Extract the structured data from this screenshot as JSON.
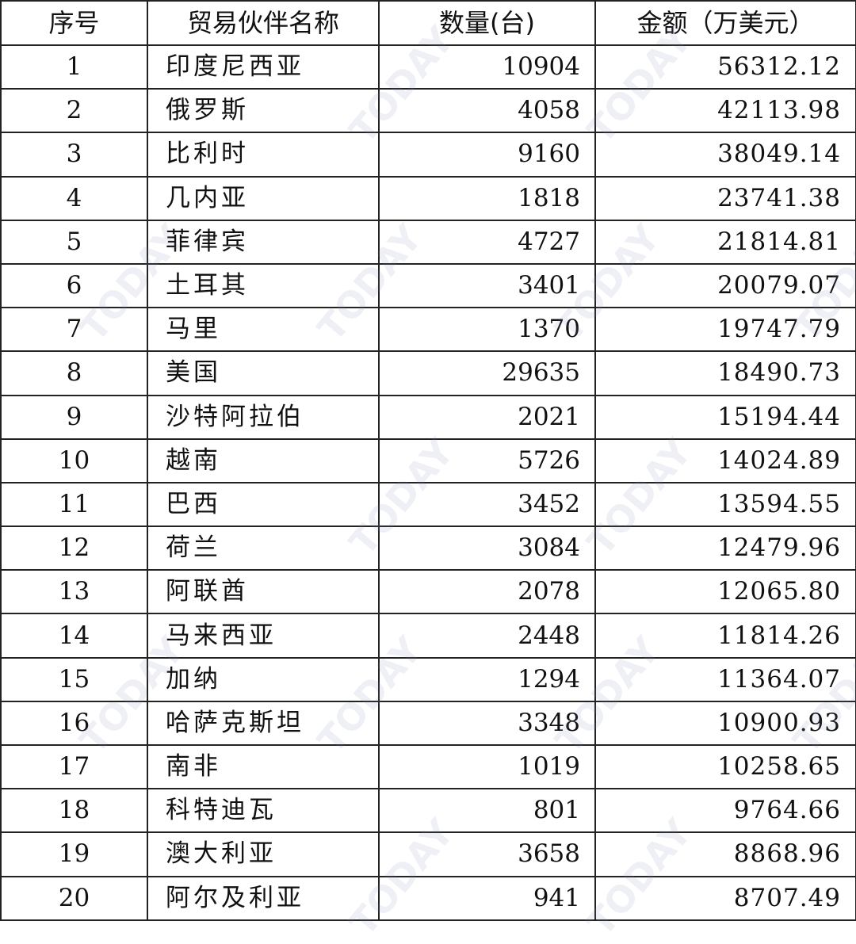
{
  "table": {
    "headers": [
      "序号",
      "贸易伙伴名称",
      "数量(台)",
      "金额（万美元）"
    ],
    "rows": [
      [
        "1",
        "印度尼西亚",
        "10904",
        "56312.12"
      ],
      [
        "2",
        "俄罗斯",
        "4058",
        "42113.98"
      ],
      [
        "3",
        "比利时",
        "9160",
        "38049.14"
      ],
      [
        "4",
        "几内亚",
        "1818",
        "23741.38"
      ],
      [
        "5",
        "菲律宾",
        "4727",
        "21814.81"
      ],
      [
        "6",
        "土耳其",
        "3401",
        "20079.07"
      ],
      [
        "7",
        "马里",
        "1370",
        "19747.79"
      ],
      [
        "8",
        "美国",
        "29635",
        "18490.73"
      ],
      [
        "9",
        "沙特阿拉伯",
        "2021",
        "15194.44"
      ],
      [
        "10",
        "越南",
        "5726",
        "14024.89"
      ],
      [
        "11",
        "巴西",
        "3452",
        "13594.55"
      ],
      [
        "12",
        "荷兰",
        "3084",
        "12479.96"
      ],
      [
        "13",
        "阿联酋",
        "2078",
        "12065.80"
      ],
      [
        "14",
        "马来西亚",
        "2448",
        "11814.26"
      ],
      [
        "15",
        "加纳",
        "1294",
        "11364.07"
      ],
      [
        "16",
        "哈萨克斯坦",
        "3348",
        "10900.93"
      ],
      [
        "17",
        "南非",
        "1019",
        "10258.65"
      ],
      [
        "18",
        "科特迪瓦",
        "801",
        "9764.66"
      ],
      [
        "19",
        "澳大利亚",
        "3658",
        "8868.96"
      ],
      [
        "20",
        "阿尔及利亚",
        "941",
        "8707.49"
      ]
    ]
  },
  "watermark": "TODAY"
}
